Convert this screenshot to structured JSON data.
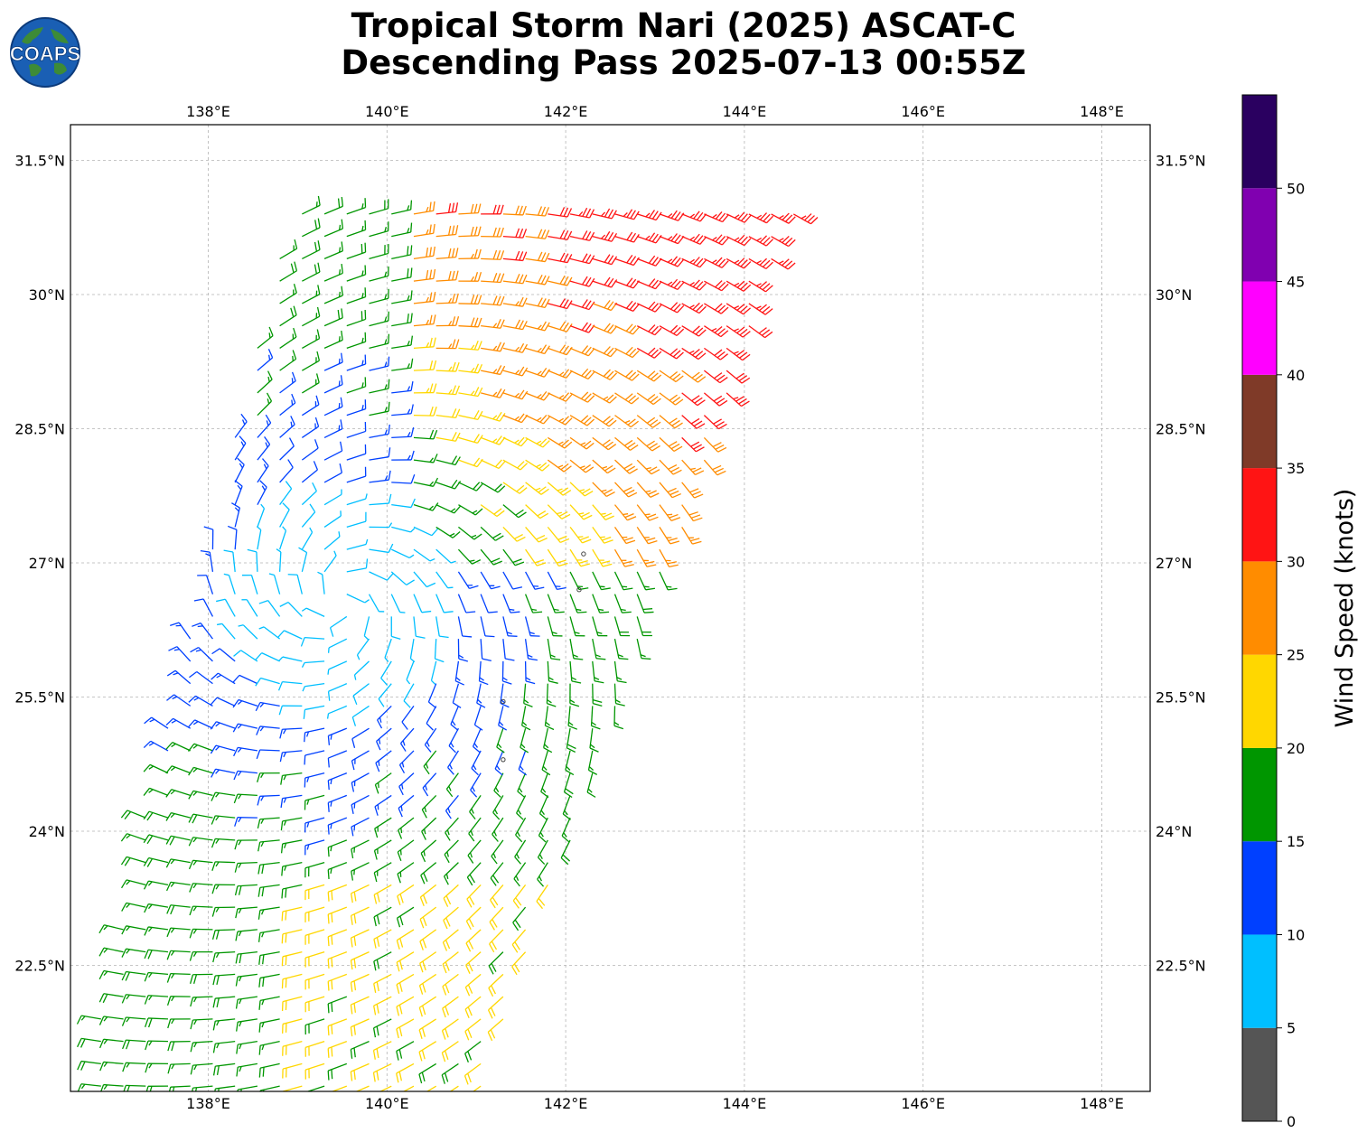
{
  "title": {
    "line1": "Tropical Storm Nari (2025) ASCAT-C",
    "line2": "Descending Pass 2025-07-13 00:55Z"
  },
  "logo": {
    "text": "COAPS",
    "icon": "globe-logo-icon"
  },
  "map": {
    "lon_range": [
      136.45,
      148.55
    ],
    "lat_range": [
      20.1,
      30.9
    ],
    "lon_ticks": [
      "138°E",
      "140°E",
      "142°E",
      "144°E",
      "146°E",
      "148°E"
    ],
    "lon_tick_values": [
      138,
      140,
      142,
      144,
      146,
      148
    ],
    "lat_ticks": [
      "22.5°N",
      "24°N",
      "25.5°N",
      "27°N",
      "28.5°N",
      "30°N",
      "31.5°N"
    ],
    "lat_tick_values": [
      22.5,
      24,
      25.5,
      27,
      28.5,
      30,
      31.5
    ],
    "grid": true,
    "gridline_color": "#b4b4b4"
  },
  "storm": {
    "center_lon": 139.5,
    "center_lat": 26.6
  },
  "swath": {
    "corners": [
      [
        136.35,
        20.1
      ],
      [
        140.7,
        20.1
      ],
      [
        144.6,
        31.0
      ],
      [
        138.9,
        31.0
      ]
    ]
  },
  "colorbar": {
    "label": "Wind Speed (knots)",
    "ticks": [
      "0",
      "5",
      "10",
      "15",
      "20",
      "25",
      "30",
      "35",
      "40",
      "45",
      "50"
    ],
    "bins": [
      {
        "min": 0,
        "max": 5,
        "color": "#555555"
      },
      {
        "min": 5,
        "max": 10,
        "color": "#00bfff"
      },
      {
        "min": 10,
        "max": 15,
        "color": "#0040ff"
      },
      {
        "min": 15,
        "max": 20,
        "color": "#009600"
      },
      {
        "min": 20,
        "max": 25,
        "color": "#ffd700"
      },
      {
        "min": 25,
        "max": 30,
        "color": "#ff8c00"
      },
      {
        "min": 30,
        "max": 35,
        "color": "#ff1414"
      },
      {
        "min": 35,
        "max": 40,
        "color": "#7f3a28"
      },
      {
        "min": 40,
        "max": 45,
        "color": "#ff00ff"
      },
      {
        "min": 45,
        "max": 50,
        "color": "#8000b0"
      },
      {
        "min": 50,
        "max": 55,
        "color": "#2a0060"
      }
    ]
  },
  "islands": [
    [
      142.2,
      27.1
    ],
    [
      142.15,
      26.7
    ],
    [
      141.3,
      25.45
    ],
    [
      141.3,
      24.8
    ]
  ]
}
